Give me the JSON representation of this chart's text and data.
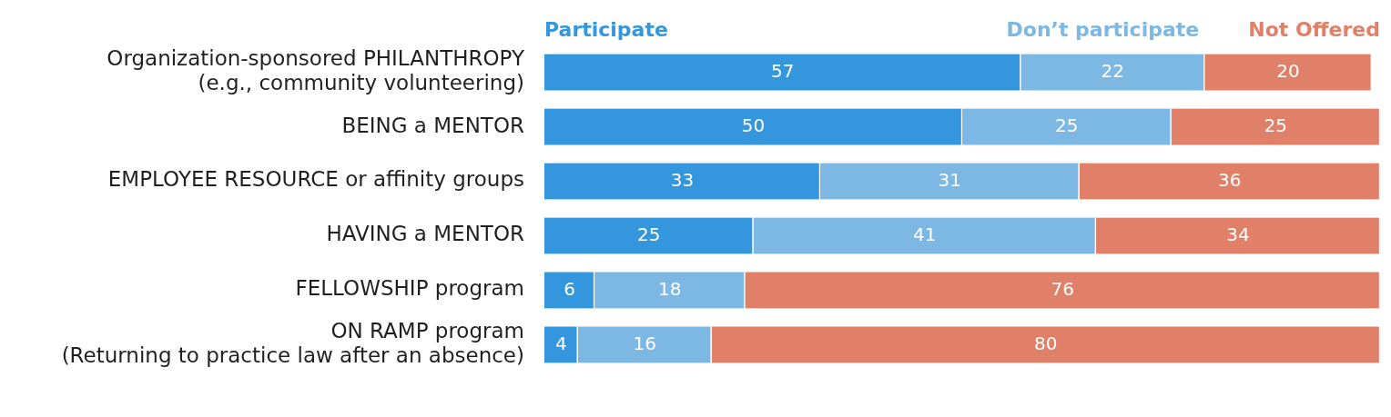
{
  "chart_data": {
    "type": "bar",
    "orientation": "horizontal",
    "stacked": true,
    "data_labels": true,
    "legend": "top",
    "grid": false,
    "tick_labels": "y",
    "categories": [
      "Organization-sponsored PHILANTHROPY\n(e.g., community volunteering)",
      "BEING a MENTOR",
      "EMPLOYEE RESOURCE or affinity groups",
      "HAVING a MENTOR",
      "FELLOWSHIP program",
      "ON RAMP program\n(Returning to practice law after an absence)"
    ],
    "xlim": [
      0,
      100
    ],
    "series": [
      {
        "name": "Participate",
        "color": "#3497de",
        "values": [
          57,
          50,
          33,
          25,
          6,
          4
        ]
      },
      {
        "name": "Don’t participate",
        "color": "#7db7e3",
        "values": [
          22,
          25,
          31,
          41,
          18,
          16
        ]
      },
      {
        "name": "Not Offered",
        "color": "#e08069",
        "values": [
          20,
          25,
          36,
          34,
          76,
          80
        ]
      }
    ]
  }
}
